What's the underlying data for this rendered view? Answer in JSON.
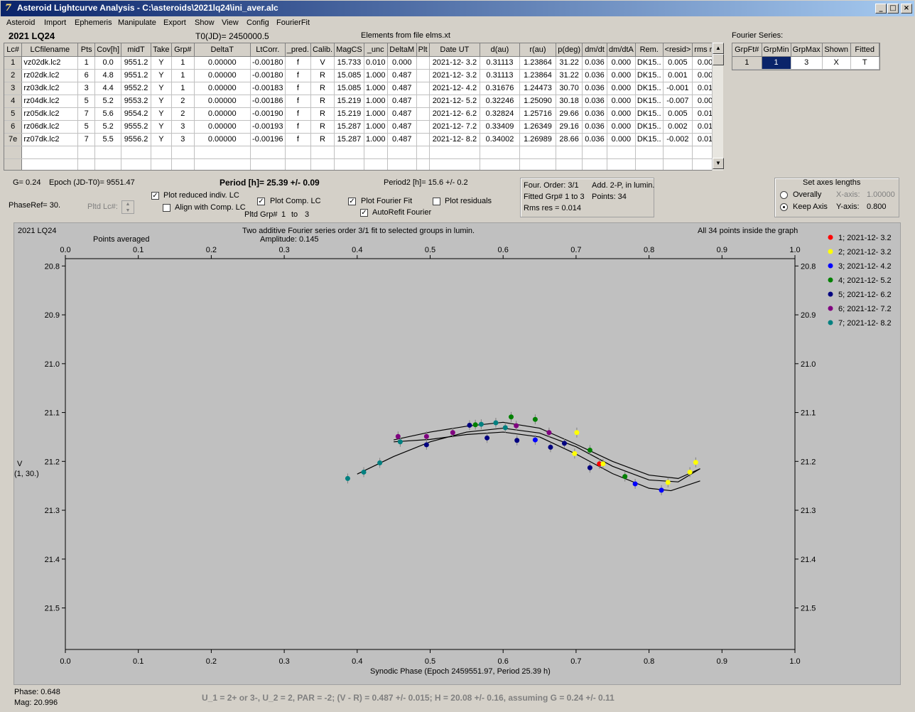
{
  "window": {
    "title": "Asteroid Lightcurve Analysis - C:\\asteroids\\2021lq24\\ini_aver.alc",
    "minimize": "_",
    "maximize": "□",
    "close": "×"
  },
  "menu": [
    "Asteroid",
    "Import",
    "Ephemeris",
    "Manipulate",
    "Export",
    "Show",
    "View",
    "Config",
    "FourierFit"
  ],
  "header": {
    "asteroid": "2021 LQ24",
    "t0": "T0(JD)= 2450000.5",
    "elements": "Elements from file elms.xt",
    "fourier_label": "Fourier Series:"
  },
  "lc_table": {
    "columns": [
      "Lc#",
      "LCfilename",
      "Pts",
      "Cov[h]",
      "midT",
      "Take",
      "Grp#",
      "DeltaT",
      "LtCorr.",
      "_pred.",
      "Calib.",
      "MagCS",
      "_unc",
      "DeltaM",
      "Plt",
      "Date UT",
      "d(au)",
      "r(au)",
      "p(deg)",
      "dm/dt",
      "dm/dtA",
      "Rem.",
      "<resid>",
      "rms res"
    ],
    "rows": [
      [
        "1",
        "vz02dk.lc2",
        "1",
        "0.0",
        "9551.2",
        "Y",
        "1",
        "0.00000",
        "-0.00180",
        "f",
        "V",
        "15.733",
        "0.010",
        "0.000",
        "",
        "2021-12- 3.2",
        "0.31113",
        "1.23864",
        "31.22",
        "0.036",
        "0.000",
        "DK15..",
        "0.005",
        "0.005"
      ],
      [
        "2",
        "rz02dk.lc2",
        "6",
        "4.8",
        "9551.2",
        "Y",
        "1",
        "0.00000",
        "-0.00180",
        "f",
        "R",
        "15.085",
        "1.000",
        "0.487",
        "",
        "2021-12- 3.2",
        "0.31113",
        "1.23864",
        "31.22",
        "0.036",
        "0.000",
        "DK15..",
        "0.001",
        "0.008"
      ],
      [
        "3",
        "rz03dk.lc2",
        "3",
        "4.4",
        "9552.2",
        "Y",
        "1",
        "0.00000",
        "-0.00183",
        "f",
        "R",
        "15.085",
        "1.000",
        "0.487",
        "",
        "2021-12- 4.2",
        "0.31676",
        "1.24473",
        "30.70",
        "0.036",
        "0.000",
        "DK15..",
        "-0.001",
        "0.010"
      ],
      [
        "4",
        "rz04dk.lc2",
        "5",
        "5.2",
        "9553.2",
        "Y",
        "2",
        "0.00000",
        "-0.00186",
        "f",
        "R",
        "15.219",
        "1.000",
        "0.487",
        "",
        "2021-12- 5.2",
        "0.32246",
        "1.25090",
        "30.18",
        "0.036",
        "0.000",
        "DK15..",
        "-0.007",
        "0.009"
      ],
      [
        "5",
        "rz05dk.lc2",
        "7",
        "5.6",
        "9554.2",
        "Y",
        "2",
        "0.00000",
        "-0.00190",
        "f",
        "R",
        "15.219",
        "1.000",
        "0.487",
        "",
        "2021-12- 6.2",
        "0.32824",
        "1.25716",
        "29.66",
        "0.036",
        "0.000",
        "DK15..",
        "0.005",
        "0.014"
      ],
      [
        "6",
        "rz06dk.lc2",
        "5",
        "5.2",
        "9555.2",
        "Y",
        "3",
        "0.00000",
        "-0.00193",
        "f",
        "R",
        "15.287",
        "1.000",
        "0.487",
        "",
        "2021-12- 7.2",
        "0.33409",
        "1.26349",
        "29.16",
        "0.036",
        "0.000",
        "DK15..",
        "0.002",
        "0.010"
      ],
      [
        "7e",
        "rz07dk.lc2",
        "7",
        "5.5",
        "9556.2",
        "Y",
        "3",
        "0.00000",
        "-0.00196",
        "f",
        "R",
        "15.287",
        "1.000",
        "0.487",
        "",
        "2021-12- 8.2",
        "0.34002",
        "1.26989",
        "28.66",
        "0.036",
        "0.000",
        "DK15..",
        "-0.002",
        "0.010"
      ]
    ]
  },
  "fourier_table": {
    "columns": [
      "GrpFt#",
      "GrpMin",
      "GrpMax",
      "Shown",
      "Fitted"
    ],
    "row": [
      "1",
      "1",
      "3",
      "X",
      "T"
    ]
  },
  "info": {
    "g": "G= 0.24",
    "epoch": "Epoch (JD-T0)= 9551.47",
    "period": "Period [h]= 25.39 +/- 0.09",
    "period2": "Period2 [h]= 15.6 +/- 0.2",
    "phase_ref": "PhaseRef= 30.",
    "pltd_lc": "Pltd Lc#:",
    "pltd_grp": "Pltd Grp#",
    "pltd_grp_from": "1",
    "pltd_grp_to_label": "to",
    "pltd_grp_to": "3"
  },
  "options": {
    "plot_reduced": {
      "label": "Plot reduced indiv. LC",
      "checked": true
    },
    "align_comp": {
      "label": "Align with Comp. LC",
      "checked": false
    },
    "plot_comp": {
      "label": "Plot Comp. LC",
      "checked": true
    },
    "plot_fourier": {
      "label": "Plot Fourier Fit",
      "checked": true
    },
    "autorefit": {
      "label": "AutoRefit Fourier",
      "checked": true
    },
    "plot_residuals": {
      "label": "Plot residuals",
      "checked": false
    }
  },
  "fourier_box": {
    "order": "Four. Order:  3/1",
    "add": "Add. 2-P, in lumin.",
    "fitted": "Fitted Grp# 1 to 3",
    "points": "Points: 34",
    "rms": "Rms res     = 0.014"
  },
  "axes_box": {
    "title": "Set axes lengths",
    "overally": "Overally",
    "keep_axis": "Keep Axis",
    "xaxis_label": "X-axis:",
    "xaxis_value": "1.00000",
    "yaxis_label": "Y-axis:",
    "yaxis_value": "0.800",
    "selected": "keep_axis"
  },
  "plot": {
    "asteroid": "2021 LQ24",
    "points_averaged": "Points averaged",
    "fit_title": "Two additive Fourier series order 3/1 fit to selected groups in lumin.",
    "amplitude": "Amplitude: 0.145",
    "inside": "All 34 points inside the graph",
    "xlabel": "Synodic Phase (Epoch 2459551.97, Period 25.39 h)",
    "ylabel_1": "V",
    "ylabel_2": "(1, 30.)",
    "bg": "#c0c0c0"
  },
  "chart_data": {
    "type": "scatter",
    "x_ticks": [
      "0.0",
      "0.1",
      "0.2",
      "0.3",
      "0.4",
      "0.5",
      "0.6",
      "0.7",
      "0.8",
      "0.9",
      "1.0"
    ],
    "y_ticks": [
      "20.8",
      "20.9",
      "21.0",
      "21.1",
      "21.2",
      "21.3",
      "21.4",
      "21.5"
    ],
    "xlim": [
      0,
      1
    ],
    "ylim": [
      20.785,
      21.585
    ],
    "y_inverted": true,
    "series": [
      {
        "name": "1; 2021-12- 3.2",
        "color": "#ff0000",
        "points": [
          [
            0.732,
            21.205
          ]
        ]
      },
      {
        "name": "2; 2021-12- 3.2",
        "color": "#ffff00",
        "points": [
          [
            0.701,
            21.141
          ],
          [
            0.698,
            21.184
          ],
          [
            0.737,
            21.205
          ],
          [
            0.826,
            21.243
          ],
          [
            0.856,
            21.222
          ],
          [
            0.864,
            21.202
          ]
        ]
      },
      {
        "name": "3; 2021-12- 4.2",
        "color": "#0000ff",
        "points": [
          [
            0.644,
            21.156
          ],
          [
            0.781,
            21.246
          ],
          [
            0.817,
            21.259
          ]
        ]
      },
      {
        "name": "4; 2021-12- 5.2",
        "color": "#008000",
        "points": [
          [
            0.562,
            21.125
          ],
          [
            0.611,
            21.109
          ],
          [
            0.644,
            21.114
          ],
          [
            0.719,
            21.177
          ],
          [
            0.767,
            21.231
          ]
        ]
      },
      {
        "name": "5; 2021-12- 6.2",
        "color": "#000080",
        "points": [
          [
            0.495,
            21.166
          ],
          [
            0.554,
            21.126
          ],
          [
            0.578,
            21.152
          ],
          [
            0.619,
            21.157
          ],
          [
            0.665,
            21.171
          ],
          [
            0.684,
            21.163
          ],
          [
            0.719,
            21.213
          ]
        ]
      },
      {
        "name": "6; 2021-12- 7.2",
        "color": "#800080",
        "points": [
          [
            0.456,
            21.149
          ],
          [
            0.495,
            21.149
          ],
          [
            0.531,
            21.141
          ],
          [
            0.618,
            21.127
          ],
          [
            0.663,
            21.141
          ]
        ]
      },
      {
        "name": "7; 2021-12- 8.2",
        "color": "#008080",
        "points": [
          [
            0.387,
            21.235
          ],
          [
            0.409,
            21.222
          ],
          [
            0.431,
            21.203
          ],
          [
            0.459,
            21.16
          ],
          [
            0.57,
            21.124
          ],
          [
            0.59,
            21.121
          ],
          [
            0.603,
            21.131
          ]
        ]
      }
    ],
    "fit_curves": [
      [
        [
          0.4,
          21.226
        ],
        [
          0.45,
          21.19
        ],
        [
          0.5,
          21.16
        ],
        [
          0.55,
          21.14
        ],
        [
          0.6,
          21.132
        ],
        [
          0.65,
          21.142
        ],
        [
          0.7,
          21.17
        ],
        [
          0.75,
          21.21
        ],
        [
          0.8,
          21.238
        ],
        [
          0.84,
          21.242
        ],
        [
          0.87,
          21.215
        ]
      ],
      [
        [
          0.45,
          21.156
        ],
        [
          0.5,
          21.14
        ],
        [
          0.55,
          21.128
        ],
        [
          0.6,
          21.12
        ],
        [
          0.65,
          21.132
        ],
        [
          0.7,
          21.165
        ],
        [
          0.75,
          21.2
        ],
        [
          0.8,
          21.228
        ],
        [
          0.84,
          21.235
        ],
        [
          0.87,
          21.215
        ]
      ],
      [
        [
          0.45,
          21.16
        ],
        [
          0.5,
          21.155
        ],
        [
          0.55,
          21.145
        ],
        [
          0.6,
          21.14
        ],
        [
          0.65,
          21.15
        ],
        [
          0.7,
          21.185
        ],
        [
          0.75,
          21.225
        ],
        [
          0.8,
          21.255
        ],
        [
          0.83,
          21.26
        ],
        [
          0.87,
          21.24
        ]
      ]
    ]
  },
  "footer": {
    "phase": "Phase:  0.648",
    "mag": "Mag:   20.996",
    "result": "U_1 = 2+ or 3-, U_2 = 2, PAR = -2; (V - R) = 0.487 +/- 0.015; H = 20.08 +/- 0.16, assuming G = 0.24 +/- 0.11"
  }
}
